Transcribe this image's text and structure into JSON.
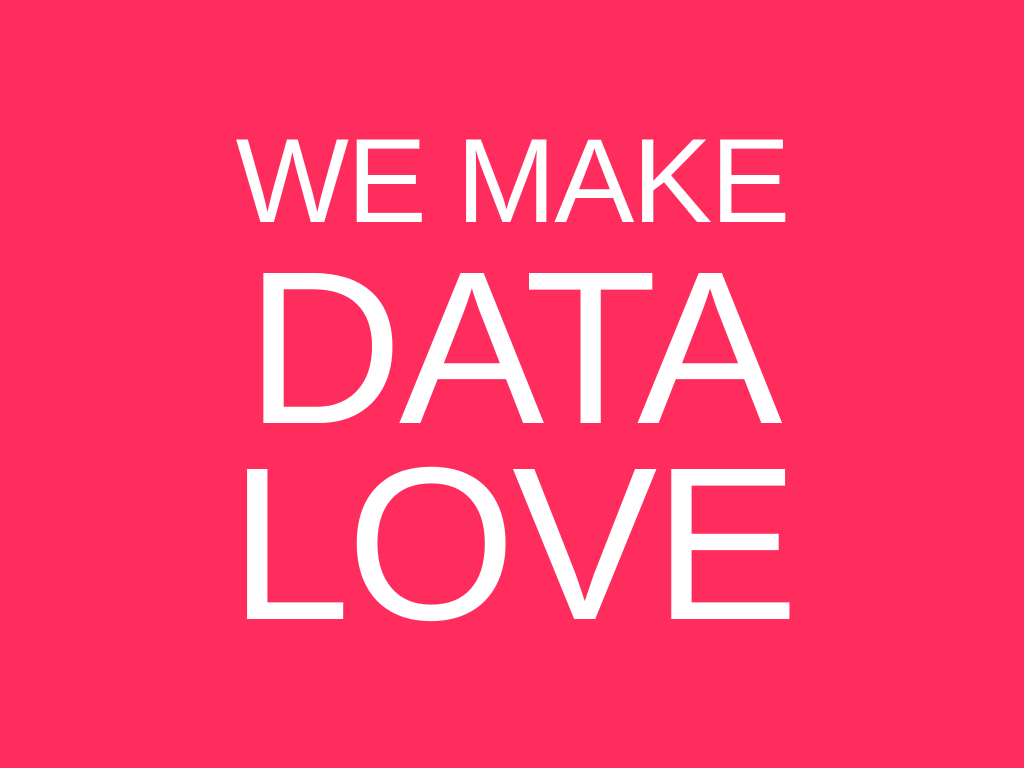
{
  "colors": {
    "background": "#ff2d5e",
    "text": "#ffffff"
  },
  "headline": {
    "line1": "WE MAKE",
    "line2": "DATA",
    "line3": "LOVE"
  }
}
